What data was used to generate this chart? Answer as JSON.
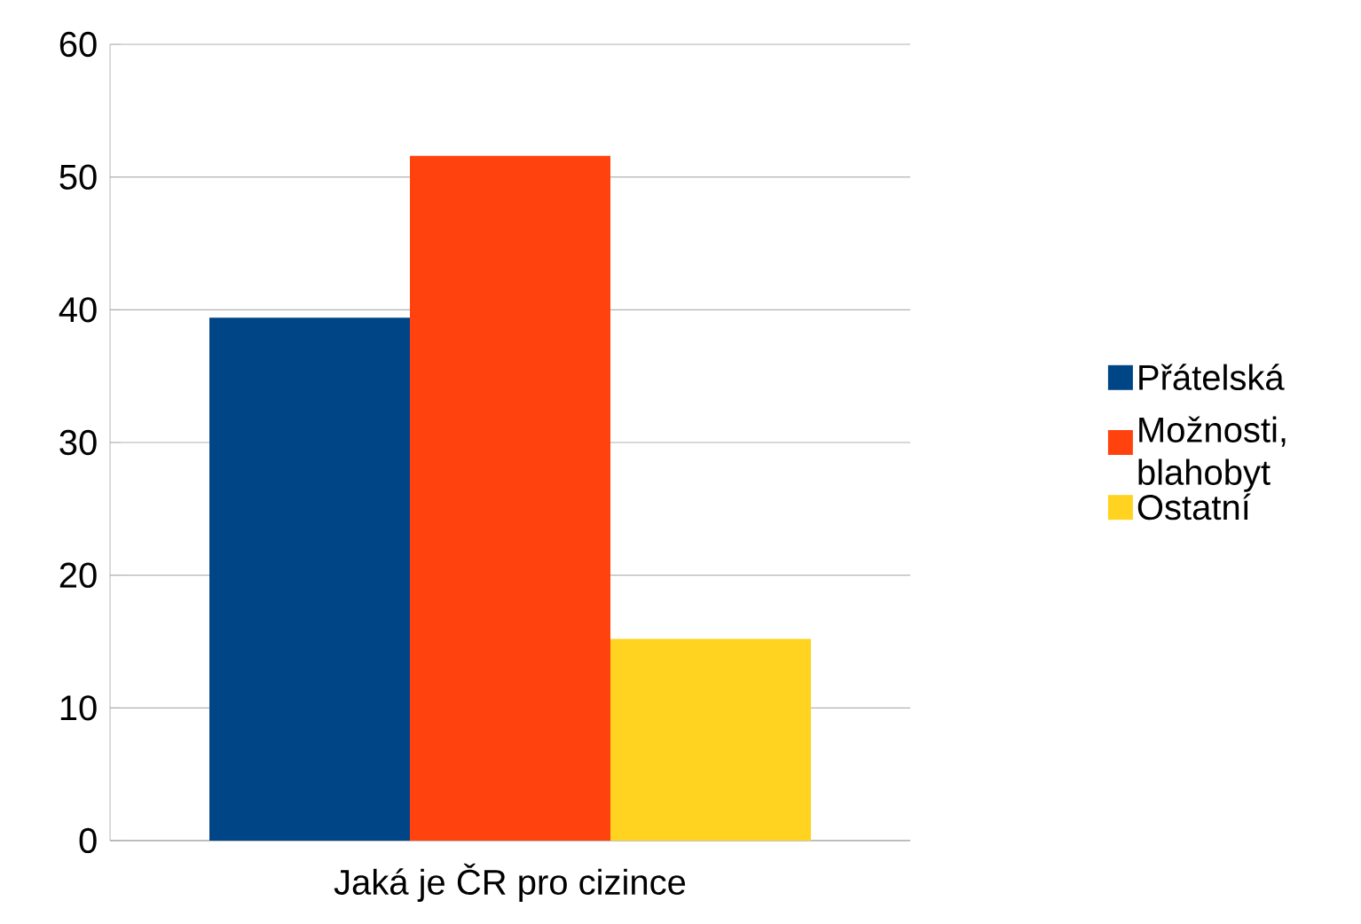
{
  "chart_data": {
    "type": "bar",
    "categories": [
      "Jaká je ČR pro cizince"
    ],
    "series": [
      {
        "name": "Přátelská",
        "color": "#004586",
        "values": [
          39.4
        ]
      },
      {
        "name": "Možnosti, blahobyt",
        "color": "#ff420e",
        "values": [
          51.6
        ]
      },
      {
        "name": "Ostatní",
        "color": "#ffd320",
        "values": [
          15.2
        ]
      }
    ],
    "ylim": [
      0,
      60
    ],
    "yticks": [
      0,
      10,
      20,
      30,
      40,
      50,
      60
    ],
    "grid": "y",
    "legend": "right"
  }
}
